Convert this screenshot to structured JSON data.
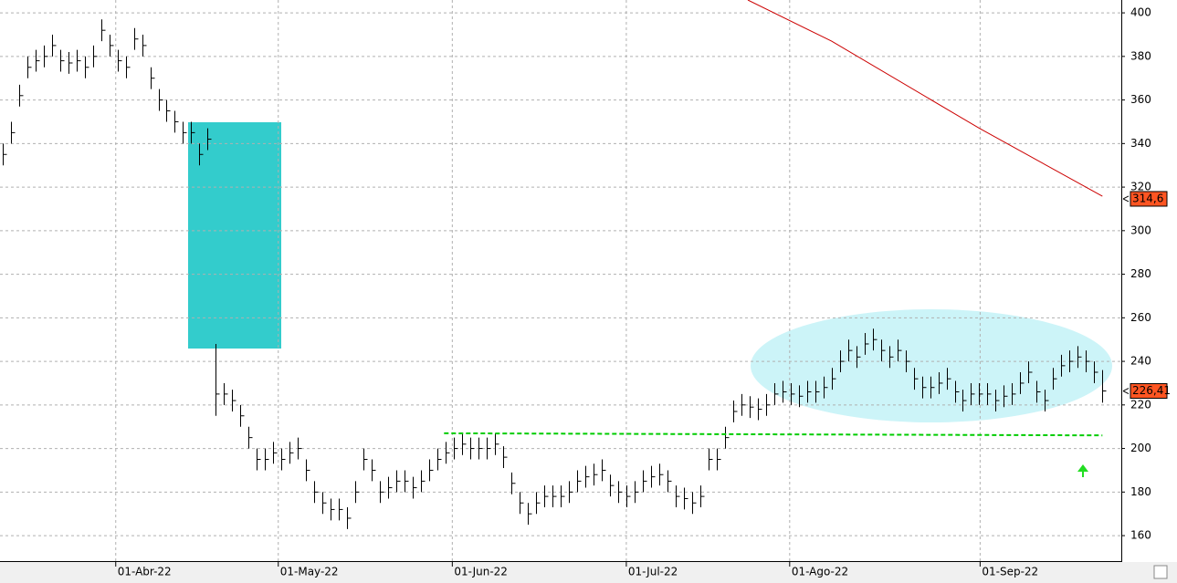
{
  "chart_data": {
    "type": "ohlc",
    "color": "#000000",
    "xlim": [
      -0.3,
      136.3
    ],
    "xticks": [
      {
        "value": 13.8,
        "label": "01-Abr-22"
      },
      {
        "value": 33.6,
        "label": "01-May-22"
      },
      {
        "value": 54.8,
        "label": "01-Jun-22"
      },
      {
        "value": 76,
        "label": "01-Jul-22"
      },
      {
        "value": 95.9,
        "label": "01-Ago-22"
      },
      {
        "value": 119.1,
        "label": "01-Sep-22"
      }
    ],
    "ylim": [
      148.3,
      405.9
    ],
    "yticks": [
      160,
      180,
      200,
      220,
      240,
      260,
      280,
      300,
      320,
      340,
      360,
      380,
      400
    ],
    "grid": true,
    "high": [
      340,
      350,
      367,
      380,
      383,
      385,
      390,
      383,
      382,
      383,
      380,
      385,
      397,
      390,
      383,
      380,
      393,
      390,
      375,
      365,
      360,
      355,
      350,
      350,
      340,
      347,
      248,
      230,
      227,
      220,
      210,
      200,
      200,
      203,
      200,
      203,
      205,
      195,
      185,
      180,
      177,
      177,
      173,
      185,
      200,
      195,
      185,
      187,
      190,
      190,
      187,
      190,
      195,
      200,
      203,
      205,
      207,
      205,
      205,
      205,
      207,
      201,
      189,
      180,
      175,
      180,
      183,
      183,
      183,
      185,
      190,
      192,
      193,
      195,
      188,
      185,
      183,
      185,
      190,
      192,
      193,
      190,
      183,
      182,
      180,
      183,
      200,
      200,
      210,
      222,
      225,
      224,
      223,
      225,
      230,
      231,
      230,
      229,
      231,
      231,
      233,
      237,
      245,
      250,
      247,
      253,
      255,
      250,
      247,
      250,
      245,
      237,
      233,
      233,
      235,
      237,
      231,
      227,
      230,
      230,
      230,
      227,
      229,
      230,
      235,
      240,
      231,
      227,
      237,
      243,
      245,
      247,
      245,
      240,
      236
    ],
    "low": [
      330,
      340,
      357,
      370,
      373,
      375,
      380,
      373,
      372,
      373,
      370,
      375,
      387,
      380,
      373,
      370,
      383,
      380,
      365,
      355,
      350,
      345,
      340,
      340,
      330,
      337,
      215,
      220,
      217,
      210,
      200,
      190,
      190,
      193,
      190,
      193,
      195,
      185,
      175,
      170,
      167,
      167,
      163,
      175,
      190,
      185,
      175,
      177,
      180,
      180,
      177,
      180,
      185,
      190,
      193,
      195,
      197,
      195,
      195,
      195,
      197,
      191,
      179,
      170,
      165,
      170,
      173,
      173,
      173,
      175,
      180,
      182,
      183,
      185,
      178,
      175,
      173,
      175,
      180,
      182,
      183,
      180,
      173,
      172,
      170,
      173,
      190,
      190,
      200,
      212,
      215,
      214,
      213,
      215,
      220,
      221,
      220,
      219,
      221,
      221,
      223,
      227,
      235,
      240,
      237,
      243,
      245,
      240,
      237,
      240,
      235,
      227,
      223,
      223,
      225,
      227,
      221,
      217,
      220,
      220,
      220,
      217,
      219,
      220,
      225,
      230,
      221,
      217,
      227,
      233,
      235,
      237,
      235,
      230,
      221
    ],
    "close": [
      335,
      345,
      362,
      375,
      378,
      380,
      385,
      378,
      377,
      378,
      375,
      380,
      392,
      385,
      378,
      375,
      388,
      385,
      370,
      360,
      355,
      350,
      345,
      345,
      335,
      342,
      225,
      225,
      222,
      215,
      205,
      195,
      195,
      198,
      195,
      198,
      200,
      190,
      180,
      175,
      172,
      172,
      168,
      180,
      195,
      190,
      180,
      182,
      185,
      185,
      182,
      185,
      190,
      195,
      198,
      200,
      202,
      200,
      200,
      200,
      202,
      196,
      184,
      175,
      170,
      175,
      178,
      178,
      178,
      180,
      185,
      187,
      188,
      190,
      183,
      180,
      178,
      180,
      185,
      187,
      188,
      185,
      178,
      177,
      175,
      178,
      195,
      195,
      205,
      217,
      220,
      219,
      218,
      220,
      225,
      226,
      225,
      224,
      226,
      226,
      228,
      232,
      240,
      245,
      242,
      248,
      250,
      245,
      242,
      245,
      240,
      232,
      228,
      228,
      230,
      232,
      226,
      222,
      225,
      225,
      225,
      222,
      224,
      225,
      230,
      235,
      226,
      222,
      232,
      238,
      240,
      242,
      240,
      235,
      226.41
    ],
    "moving_average": {
      "color": "#cc0000",
      "x": [
        90.8,
        101,
        119,
        134
      ],
      "values": [
        405.9,
        387,
        347,
        315.8
      ]
    },
    "support": {
      "color": "#00cc00",
      "x": [
        53.8,
        134
      ],
      "values": [
        207,
        206
      ]
    },
    "last_labels": [
      {
        "value": 314.6,
        "label": "314,6"
      },
      {
        "value": 226.41,
        "label": "226,41"
      }
    ]
  }
}
